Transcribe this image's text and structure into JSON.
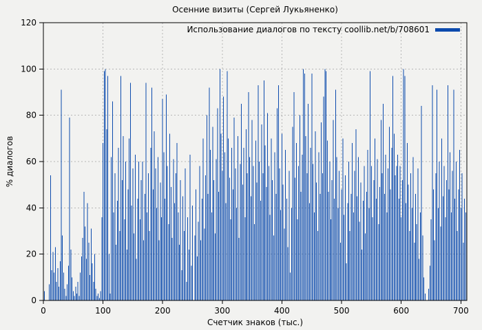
{
  "chart_data": {
    "type": "bar",
    "style": "impulses",
    "title": "Осенние визиты (Сергей Лукьяненко)",
    "xlabel": "Счетчик знаков (тыс.)",
    "ylabel": "% диалогов",
    "legend": {
      "label": "Использование диалогов по тексту coollib.net/b/708601",
      "position": "top-right-inside"
    },
    "bar_color": "#0b4aad",
    "background_color": "#f2f2f0",
    "grid": true,
    "grid_color": "#b5b5b5",
    "xlim": [
      0,
      710
    ],
    "ylim": [
      0,
      120
    ],
    "xticks": [
      0,
      100,
      200,
      300,
      400,
      500,
      600,
      700
    ],
    "yticks": [
      0,
      20,
      40,
      60,
      80,
      100,
      120
    ],
    "x_start": 0,
    "x_step": 2,
    "values": [
      9,
      4,
      0,
      0,
      0,
      7,
      54,
      13,
      21,
      12,
      23,
      8,
      14,
      6,
      17,
      91,
      28,
      12,
      5,
      2,
      7,
      15,
      79,
      22,
      10,
      4,
      2,
      6,
      3,
      8,
      2,
      12,
      19,
      27,
      47,
      32,
      18,
      42,
      25,
      11,
      31,
      16,
      8,
      20,
      5,
      2,
      3,
      1,
      4,
      36,
      68,
      99,
      100,
      74,
      97,
      20,
      3,
      62,
      86,
      38,
      55,
      24,
      43,
      66,
      30,
      97,
      52,
      71,
      35,
      60,
      22,
      48,
      70,
      94,
      41,
      57,
      29,
      63,
      18,
      44,
      60,
      35,
      52,
      60,
      26,
      46,
      94,
      38,
      55,
      30,
      66,
      92,
      48,
      73,
      57,
      40,
      62,
      26,
      51,
      36,
      87,
      64,
      44,
      89,
      58,
      33,
      72,
      49,
      27,
      61,
      42,
      55,
      68,
      38,
      24,
      52,
      13,
      45,
      30,
      57,
      8,
      36,
      22,
      63,
      15,
      41,
      0,
      28,
      48,
      19,
      34,
      58,
      26,
      44,
      70,
      31,
      54,
      80,
      46,
      92,
      65,
      38,
      75,
      52,
      29,
      61,
      83,
      47,
      100,
      72,
      56,
      88,
      64,
      42,
      99,
      70,
      53,
      35,
      66,
      48,
      79,
      57,
      40,
      71,
      27,
      59,
      85,
      50,
      66,
      36,
      74,
      55,
      90,
      62,
      45,
      78,
      58,
      33,
      69,
      51,
      93,
      60,
      43,
      76,
      55,
      95,
      67,
      49,
      81,
      58,
      37,
      70,
      52,
      28,
      64,
      46,
      83,
      93,
      57,
      39,
      72,
      50,
      31,
      65,
      44,
      23,
      56,
      12,
      40,
      75,
      90,
      53,
      68,
      35,
      58,
      80,
      47,
      63,
      100,
      98,
      71,
      55,
      85,
      42,
      66,
      98,
      59,
      38,
      73,
      51,
      30,
      64,
      46,
      77,
      55,
      88,
      100,
      99,
      69,
      47,
      60,
      35,
      52,
      78,
      44,
      91,
      62,
      40,
      56,
      25,
      48,
      70,
      37,
      54,
      16,
      42,
      60,
      30,
      46,
      68,
      38,
      56,
      74,
      45,
      62,
      34,
      51,
      22,
      43,
      58,
      29,
      47,
      65,
      40,
      99,
      58,
      36,
      52,
      70,
      44,
      61,
      33,
      49,
      78,
      55,
      85,
      46,
      63,
      38,
      57,
      75,
      48,
      66,
      97,
      72,
      54,
      58,
      63,
      44,
      58,
      36,
      52,
      100,
      97,
      42,
      68,
      50,
      30,
      55,
      40,
      62,
      25,
      46,
      33,
      57,
      18,
      38,
      84,
      28,
      10,
      3,
      0,
      0,
      5,
      15,
      35,
      93,
      48,
      26,
      55,
      91,
      40,
      60,
      32,
      70,
      45,
      58,
      36,
      52,
      93,
      48,
      64,
      38,
      56,
      91,
      44,
      60,
      30,
      48,
      65,
      40,
      55,
      25,
      44,
      38
    ]
  }
}
